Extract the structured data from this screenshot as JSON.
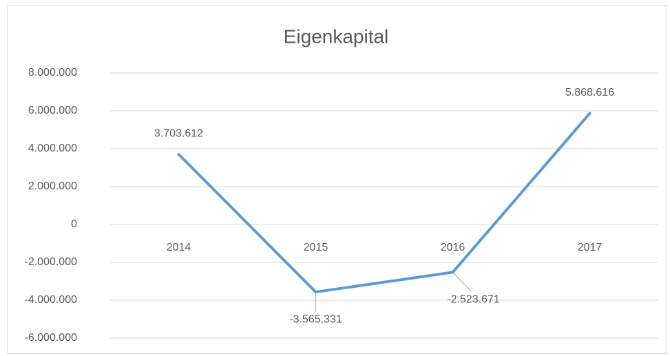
{
  "chart_data": {
    "type": "line",
    "title": "Eigenkapital",
    "categories": [
      "2014",
      "2015",
      "2016",
      "2017"
    ],
    "values": [
      3703612,
      -3565331,
      -2523671,
      5868616
    ],
    "value_labels": [
      "3.703.612",
      "-3.565.331",
      "-2.523.671",
      "5.868.616"
    ],
    "color": "#5b9bd5",
    "ylim": [
      -6000000,
      8000000
    ],
    "yticks": [
      {
        "value": -6000000,
        "label": "-6.000.000"
      },
      {
        "value": -4000000,
        "label": "-4.000.000"
      },
      {
        "value": -2000000,
        "label": "-2.000.000"
      },
      0,
      {
        "value": 2000000,
        "label": "2.000.000"
      },
      {
        "value": 4000000,
        "label": "4.000.000"
      },
      {
        "value": 6000000,
        "label": "6.000.000"
      },
      {
        "value": 8000000,
        "label": "8.000.000"
      }
    ],
    "grid": true
  }
}
